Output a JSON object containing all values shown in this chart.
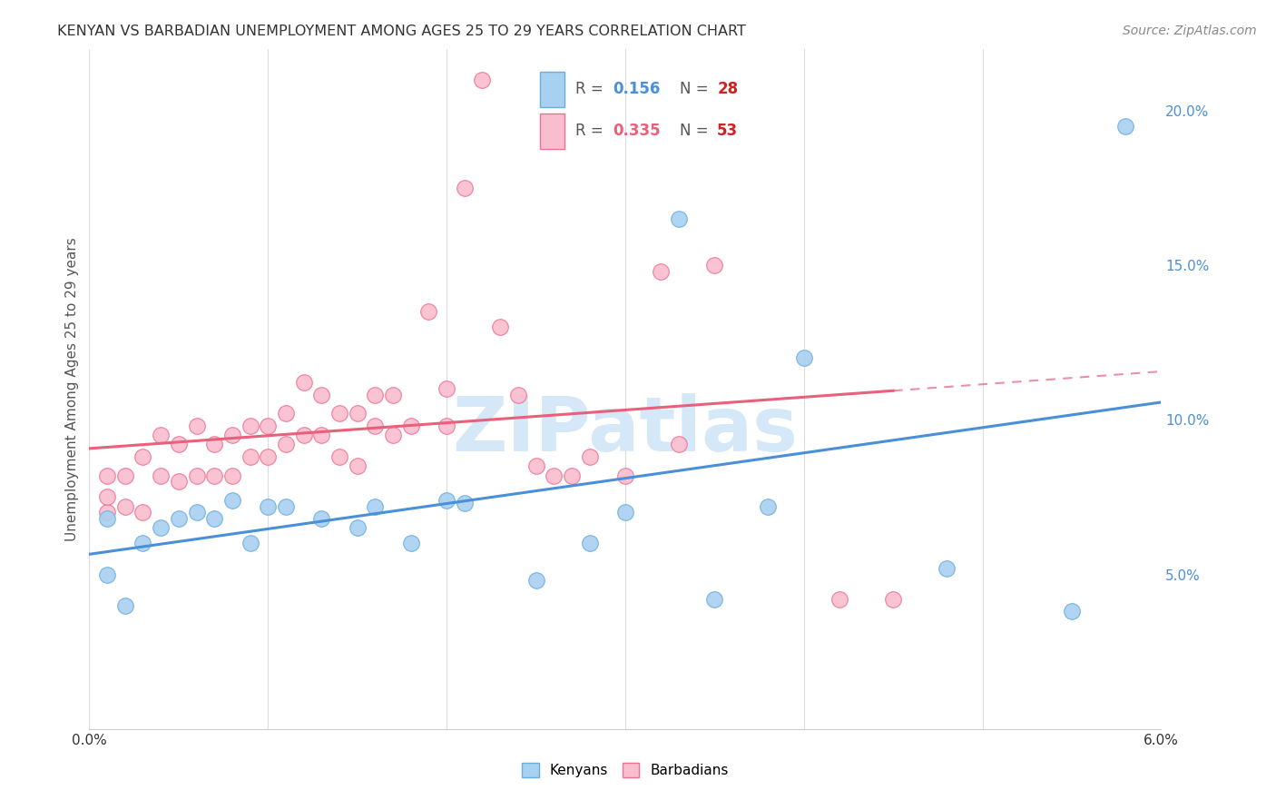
{
  "title": "KENYAN VS BARBADIAN UNEMPLOYMENT AMONG AGES 25 TO 29 YEARS CORRELATION CHART",
  "source": "Source: ZipAtlas.com",
  "ylabel": "Unemployment Among Ages 25 to 29 years",
  "xlim": [
    0.0,
    0.06
  ],
  "ylim": [
    0.0,
    0.22
  ],
  "xtick_positions": [
    0.0,
    0.01,
    0.02,
    0.03,
    0.04,
    0.05,
    0.06
  ],
  "xtick_labels": [
    "0.0%",
    "",
    "",
    "",
    "",
    "",
    "6.0%"
  ],
  "ytick_positions": [
    0.05,
    0.1,
    0.15,
    0.2
  ],
  "ytick_labels": [
    "5.0%",
    "10.0%",
    "15.0%",
    "20.0%"
  ],
  "kenyan_R": "0.156",
  "kenyan_N": "28",
  "barbadian_R": "0.335",
  "barbadian_N": "53",
  "kenyan_scatter_color": "#A8D0F0",
  "barbadian_scatter_color": "#F9BDD0",
  "kenyan_edge_color": "#6aaede",
  "barbadian_edge_color": "#f07090",
  "kenyan_line_color": "#4A90D9",
  "barbadian_line_color": "#E8607A",
  "watermark_color": "#D5E8F8",
  "legend_kenyan_fill": "#A8D0F0",
  "legend_kenyan_edge": "#6aaede",
  "legend_barbadian_fill": "#F9BDD0",
  "legend_barbadian_edge": "#f07090",
  "kenyan_x": [
    0.001,
    0.001,
    0.002,
    0.003,
    0.004,
    0.005,
    0.006,
    0.007,
    0.008,
    0.009,
    0.01,
    0.011,
    0.013,
    0.015,
    0.016,
    0.018,
    0.02,
    0.021,
    0.025,
    0.028,
    0.03,
    0.033,
    0.035,
    0.038,
    0.04,
    0.048,
    0.055,
    0.058
  ],
  "kenyan_y": [
    0.068,
    0.05,
    0.04,
    0.06,
    0.065,
    0.068,
    0.07,
    0.068,
    0.074,
    0.06,
    0.072,
    0.072,
    0.068,
    0.065,
    0.072,
    0.06,
    0.074,
    0.073,
    0.048,
    0.06,
    0.07,
    0.165,
    0.042,
    0.072,
    0.12,
    0.052,
    0.038,
    0.195
  ],
  "barbadian_x": [
    0.001,
    0.001,
    0.001,
    0.002,
    0.002,
    0.003,
    0.003,
    0.004,
    0.004,
    0.005,
    0.005,
    0.006,
    0.006,
    0.007,
    0.007,
    0.008,
    0.008,
    0.009,
    0.009,
    0.01,
    0.01,
    0.011,
    0.011,
    0.012,
    0.012,
    0.013,
    0.013,
    0.014,
    0.014,
    0.015,
    0.015,
    0.016,
    0.016,
    0.017,
    0.017,
    0.018,
    0.019,
    0.02,
    0.02,
    0.021,
    0.022,
    0.023,
    0.024,
    0.025,
    0.026,
    0.027,
    0.028,
    0.03,
    0.032,
    0.033,
    0.035,
    0.042,
    0.045
  ],
  "barbadian_y": [
    0.07,
    0.075,
    0.082,
    0.072,
    0.082,
    0.07,
    0.088,
    0.082,
    0.095,
    0.08,
    0.092,
    0.082,
    0.098,
    0.082,
    0.092,
    0.082,
    0.095,
    0.088,
    0.098,
    0.088,
    0.098,
    0.092,
    0.102,
    0.095,
    0.112,
    0.095,
    0.108,
    0.088,
    0.102,
    0.085,
    0.102,
    0.098,
    0.108,
    0.095,
    0.108,
    0.098,
    0.135,
    0.11,
    0.098,
    0.175,
    0.21,
    0.13,
    0.108,
    0.085,
    0.082,
    0.082,
    0.088,
    0.082,
    0.148,
    0.092,
    0.15,
    0.042,
    0.042
  ]
}
